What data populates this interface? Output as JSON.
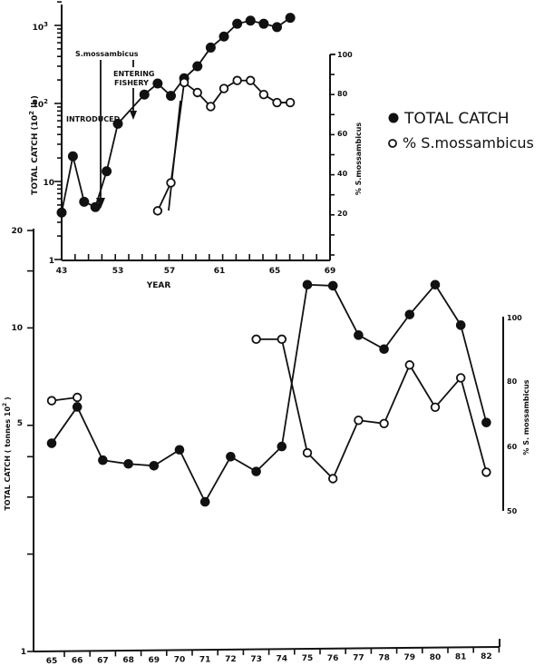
{
  "legend": {
    "items": [
      {
        "marker": "filled-circle",
        "label": "TOTAL CATCH"
      },
      {
        "marker": "open-circle",
        "label": "% S.mossambicus"
      }
    ]
  },
  "top_chart": {
    "ylabel": "TOTAL CATCH (10² lb)",
    "y_ticks": [
      "1",
      "10",
      "10²",
      "10³"
    ],
    "right_ylabel": "% S.mossambicus",
    "right_ticks": [
      "20",
      "40",
      "60",
      "80",
      "100"
    ],
    "xlabel": "YEAR",
    "x_ticks": [
      "43",
      "53",
      "57",
      "61",
      "65",
      "69"
    ],
    "annotations": {
      "introduced": "INTRODUCED",
      "species": "S.mossambicus",
      "entering": "ENTERING",
      "fishery": "FISHERY"
    }
  },
  "bottom_chart": {
    "ylabel": "TOTAL CATCH ( tonnes 10² )",
    "y_ticks": [
      "1",
      "5",
      "10",
      "20"
    ],
    "right_ylabel": "% S. mossambicus",
    "right_ticks": [
      "50",
      "60",
      "80",
      "100"
    ],
    "x_ticks": [
      "65",
      "66",
      "67",
      "68",
      "69",
      "70",
      "71",
      "72",
      "73",
      "74",
      "75",
      "76",
      "77",
      "78",
      "79",
      "80",
      "81",
      "82"
    ]
  },
  "chart_data": [
    {
      "type": "line",
      "title": "",
      "xlabel": "YEAR",
      "ylabel": "TOTAL CATCH (10² lb)",
      "y2label": "% S.mossambicus",
      "yscale": "log",
      "ylim": [
        1,
        2000
      ],
      "y2lim": [
        0,
        100
      ],
      "xlim": [
        43,
        69
      ],
      "legend_position": "right",
      "series": [
        {
          "name": "TOTAL CATCH",
          "axis": "left",
          "marker": "filled",
          "x": [
            43,
            45,
            47,
            49,
            51,
            53,
            55,
            56,
            57,
            58,
            59,
            60,
            61,
            62,
            63,
            64,
            65,
            66
          ],
          "values": [
            4.0,
            21,
            5.5,
            4.7,
            13.5,
            55,
            130,
            180,
            125,
            210,
            300,
            520,
            720,
            1050,
            1150,
            1050,
            950,
            1250
          ]
        },
        {
          "name": "% S.mossambicus",
          "axis": "right",
          "marker": "open",
          "x": [
            56,
            57,
            58,
            59,
            60,
            61,
            62,
            63,
            64,
            65,
            66
          ],
          "values": [
            22,
            36,
            86,
            81,
            74,
            83,
            87,
            87,
            80,
            76,
            76
          ]
        }
      ],
      "annotations": [
        {
          "text": "S.mossambicus INTRODUCED",
          "x": 50,
          "arrow": true
        },
        {
          "text": "ENTERING FISHERY",
          "x": 53,
          "arrow": true
        }
      ]
    },
    {
      "type": "line",
      "title": "",
      "xlabel": "",
      "ylabel": "TOTAL CATCH ( tonnes 10² )",
      "y2label": "% S. mossambicus",
      "yscale": "log",
      "ylim": [
        1,
        20
      ],
      "y2lim": [
        50,
        100
      ],
      "categories": [
        "65",
        "66",
        "67",
        "68",
        "69",
        "70",
        "71",
        "72",
        "73",
        "74",
        "75",
        "76",
        "77",
        "78",
        "79",
        "80",
        "81",
        "82"
      ],
      "series": [
        {
          "name": "TOTAL CATCH",
          "axis": "left",
          "marker": "filled",
          "x": [
            65,
            66,
            67,
            68,
            69,
            70,
            71,
            72,
            73,
            74,
            75,
            76,
            77,
            78,
            79,
            80,
            81,
            82
          ],
          "values": [
            4.4,
            5.7,
            3.9,
            3.8,
            3.75,
            4.2,
            2.9,
            4.0,
            3.6,
            4.3,
            13.6,
            13.5,
            9.5,
            8.6,
            11.0,
            13.6,
            10.2,
            5.1
          ]
        },
        {
          "name": "% S.mossambicus",
          "axis": "right",
          "marker": "open",
          "x": [
            65,
            66,
            73,
            74,
            75,
            76,
            77,
            78,
            79,
            80,
            81,
            82
          ],
          "values": [
            74,
            75,
            93,
            93,
            59,
            55,
            68,
            67,
            85,
            72,
            81,
            56
          ]
        }
      ]
    }
  ]
}
